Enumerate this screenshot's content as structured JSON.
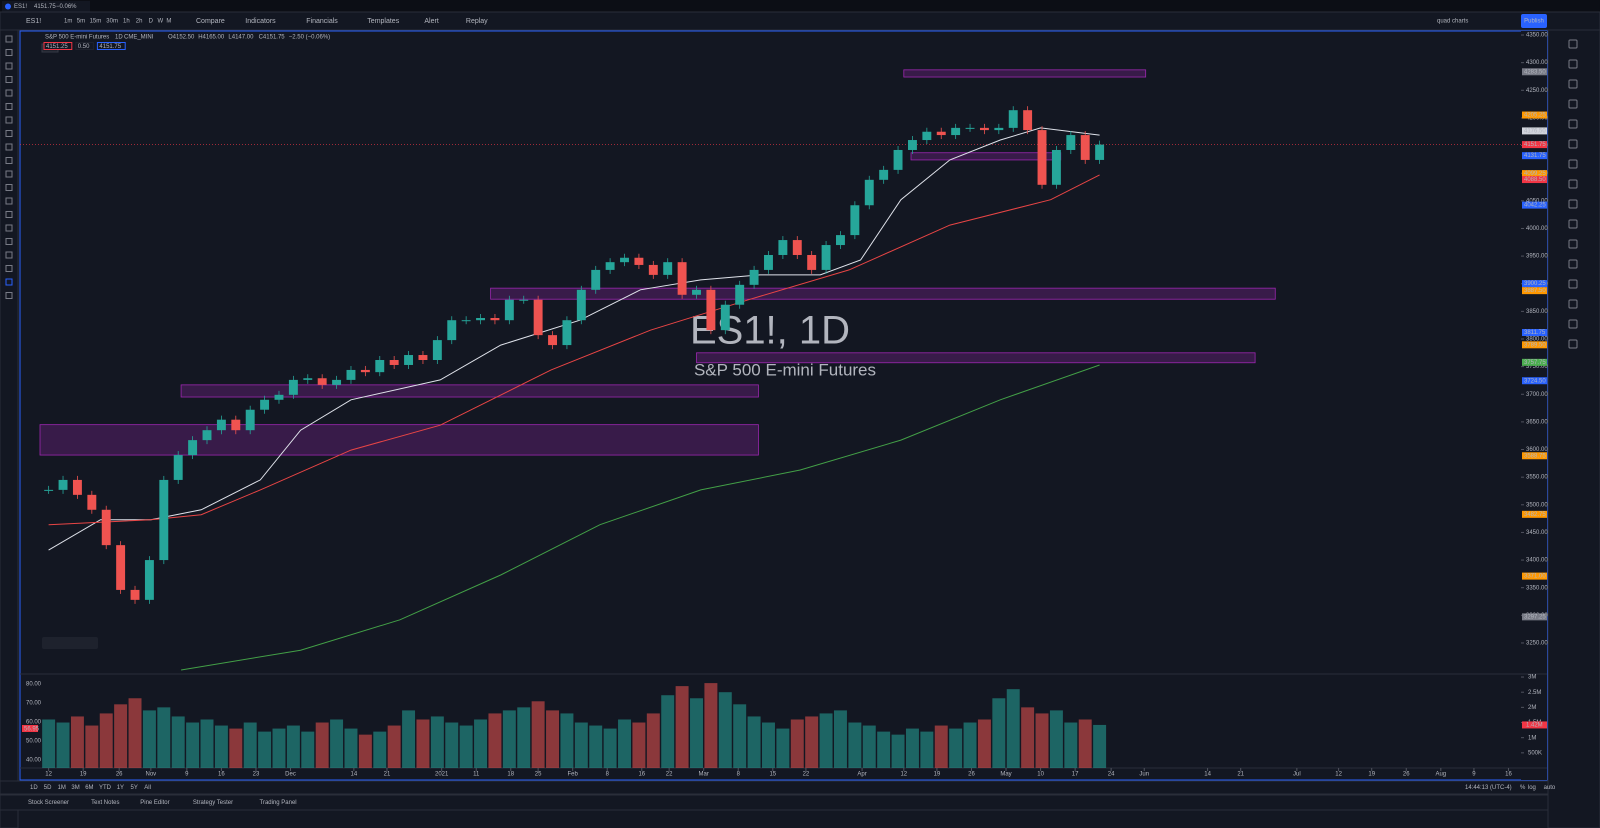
{
  "tab": {
    "title": "ES1!",
    "price": "4151.75",
    "change": "−0.06%"
  },
  "toolbar": {
    "symbol": "ES1!",
    "intervals": [
      "1m",
      "5m",
      "15m",
      "30m",
      "1h",
      "2h",
      "D",
      "W",
      "M"
    ],
    "buttons": [
      "Compare",
      "Indicators",
      "Financials",
      "Templates",
      "Alert",
      "Replay"
    ],
    "layout": "quad charts",
    "publish": "Publish"
  },
  "legend": {
    "name": "S&P 500 E-mini Futures",
    "interval": "1D",
    "exchange": "CME_MINI",
    "ohlc": [
      "O4152.50",
      "H4165.00",
      "L4147.00",
      "C4151.75",
      "−2.50 (−0.06%)"
    ],
    "boxes": [
      "4151.25",
      "0.50",
      "4151.75"
    ]
  },
  "watermark": {
    "symbol": "ES1!, 1D",
    "name": "S&P 500 E-mini Futures"
  },
  "chart_data": {
    "type": "candlestick",
    "up_color": "#26a69a",
    "down_color": "#ef5350",
    "close": [
      3527,
      3545,
      3518,
      3491,
      3427,
      3346,
      3328,
      3400,
      3545,
      3590,
      3617,
      3635,
      3654,
      3635,
      3672,
      3690,
      3699,
      3726,
      3729,
      3717,
      3726,
      3744,
      3740,
      3762,
      3753,
      3771,
      3762,
      3798,
      3834,
      3834,
      3838,
      3834,
      3871,
      3871,
      3807,
      3789,
      3834,
      3889,
      3925,
      3939,
      3947,
      3934,
      3916,
      3939,
      3880,
      3889,
      3816,
      3862,
      3898,
      3925,
      3952,
      3979,
      3952,
      3925,
      3970,
      3988,
      4042,
      4088,
      4106,
      4142,
      4160,
      4175,
      4169,
      4182,
      4182,
      4178,
      4182,
      4214,
      4178,
      4079,
      4142,
      4169,
      4124,
      4151.75
    ],
    "xlim": [
      -0.6,
      102.2
    ],
    "xticks": [
      {
        "value": 0,
        "label": "12"
      },
      {
        "value": 2.4,
        "label": "19"
      },
      {
        "value": 4.9,
        "label": "26"
      },
      {
        "value": 7.1,
        "label": "Nov"
      },
      {
        "value": 9.6,
        "label": "9"
      },
      {
        "value": 12,
        "label": "16"
      },
      {
        "value": 14.4,
        "label": "23"
      },
      {
        "value": 16.8,
        "label": "Dec"
      },
      {
        "value": 21.2,
        "label": "14"
      },
      {
        "value": 23.5,
        "label": "21"
      },
      {
        "value": 27.3,
        "label": "2021"
      },
      {
        "value": 29.7,
        "label": "11"
      },
      {
        "value": 32.1,
        "label": "18"
      },
      {
        "value": 34,
        "label": "25"
      },
      {
        "value": 36.4,
        "label": "Feb"
      },
      {
        "value": 38.8,
        "label": "8"
      },
      {
        "value": 41.2,
        "label": "16"
      },
      {
        "value": 43.1,
        "label": "22"
      },
      {
        "value": 45.5,
        "label": "Mar"
      },
      {
        "value": 47.9,
        "label": "8"
      },
      {
        "value": 50.3,
        "label": "15"
      },
      {
        "value": 52.6,
        "label": "22"
      },
      {
        "value": 56.5,
        "label": "Apr"
      },
      {
        "value": 59.4,
        "label": "12"
      },
      {
        "value": 61.7,
        "label": "19"
      },
      {
        "value": 64.1,
        "label": "26"
      },
      {
        "value": 66.5,
        "label": "May"
      },
      {
        "value": 68.9,
        "label": "10"
      },
      {
        "value": 71.3,
        "label": "17"
      },
      {
        "value": 73.8,
        "label": "24"
      },
      {
        "value": 76.1,
        "label": "Jun"
      },
      {
        "value": 80.5,
        "label": "14"
      },
      {
        "value": 82.8,
        "label": "21"
      },
      {
        "value": 86.7,
        "label": "Jul"
      },
      {
        "value": 89.6,
        "label": "12"
      },
      {
        "value": 91.9,
        "label": "19"
      },
      {
        "value": 94.3,
        "label": "26"
      },
      {
        "value": 96.7,
        "label": "Aug"
      },
      {
        "value": 99,
        "label": "9"
      },
      {
        "value": 101.4,
        "label": "16"
      }
    ],
    "ylim": [
      3200,
      4360
    ],
    "yticks": [
      {
        "value": 4350,
        "label": "4350.00"
      },
      {
        "value": 4300,
        "label": "4300.00"
      },
      {
        "value": 4250,
        "label": "4250.00"
      },
      {
        "value": 4200,
        "label": "4200.00"
      },
      {
        "value": 4150,
        "label": "4150.00"
      },
      {
        "value": 4100,
        "label": "4100.00"
      },
      {
        "value": 4050,
        "label": "4050.00"
      },
      {
        "value": 4000,
        "label": "4000.00"
      },
      {
        "value": 3950,
        "label": "3950.00"
      },
      {
        "value": 3900,
        "label": "3900.00"
      },
      {
        "value": 3850,
        "label": "3850.00"
      },
      {
        "value": 3800,
        "label": "3800.00"
      },
      {
        "value": 3750,
        "label": "3750.00"
      },
      {
        "value": 3700,
        "label": "3700.00"
      },
      {
        "value": 3650,
        "label": "3650.00"
      },
      {
        "value": 3600,
        "label": "3600.00"
      },
      {
        "value": 3550,
        "label": "3550.00"
      },
      {
        "value": 3500,
        "label": "3500.00"
      },
      {
        "value": 3450,
        "label": "3450.00"
      },
      {
        "value": 3400,
        "label": "3400.00"
      },
      {
        "value": 3350,
        "label": "3350.00"
      },
      {
        "value": 3300,
        "label": "3300.00"
      },
      {
        "value": 3250,
        "label": "3250.00"
      }
    ],
    "price_labels": [
      {
        "value": 4283.5,
        "label": "4283.50",
        "color": "#787b86"
      },
      {
        "value": 4205.25,
        "label": "4205.25",
        "color": "#ff9800"
      },
      {
        "value": 4176.5,
        "label": "4176.50",
        "color": "#d1d4dc"
      },
      {
        "value": 4151.75,
        "label": "4151.75",
        "color": "#f23645"
      },
      {
        "value": 4131.75,
        "label": "4131.75",
        "color": "#2962ff"
      },
      {
        "value": 4099.25,
        "label": "4099.25",
        "color": "#ff9800"
      },
      {
        "value": 4088.5,
        "label": "4088.50",
        "color": "#f23645"
      },
      {
        "value": 4042.25,
        "label": "4042.25",
        "color": "#2962ff"
      },
      {
        "value": 3900.25,
        "label": "3900.25",
        "color": "#2962ff"
      },
      {
        "value": 3887.5,
        "label": "3887.50",
        "color": "#ff9800"
      },
      {
        "value": 3811.75,
        "label": "3811.75",
        "color": "#2962ff"
      },
      {
        "value": 3789.5,
        "label": "3789.50",
        "color": "#ff9800"
      },
      {
        "value": 3757.75,
        "label": "3757.75",
        "color": "#4caf50"
      },
      {
        "value": 3724.5,
        "label": "3724.50",
        "color": "#2962ff"
      },
      {
        "value": 3588.75,
        "label": "3588.75",
        "color": "#ff9800"
      },
      {
        "value": 3482.75,
        "label": "3482.75",
        "color": "#ff9800"
      },
      {
        "value": 3371,
        "label": "3371.00",
        "color": "#ff9800"
      },
      {
        "value": 3297.25,
        "label": "3297.25",
        "color": "#787b86"
      }
    ],
    "moving_averages": [
      {
        "color": "#e0e3eb",
        "x": [
          0,
          3.6,
          7.1,
          10.6,
          14.7,
          17.5,
          21,
          27.2,
          31.4,
          36.9,
          41.1,
          45.3,
          49.4,
          53.6,
          56.4,
          59.2,
          62.6,
          66.1,
          68.9,
          73
        ],
        "values": [
          3418,
          3473,
          3473,
          3491,
          3545,
          3635,
          3690,
          3726,
          3789,
          3834,
          3889,
          3907,
          3916,
          3916,
          3943,
          4052,
          4124,
          4160,
          4182,
          4169
        ]
      },
      {
        "color": "#e84545",
        "x": [
          0,
          7.1,
          10.6,
          14.7,
          21,
          27.2,
          34.9,
          41.8,
          48.6,
          55.6,
          62.6,
          69.6,
          73
        ],
        "values": [
          3464,
          3473,
          3482,
          3527,
          3599,
          3644,
          3744,
          3816,
          3871,
          3925,
          4006,
          4052,
          4097
        ]
      },
      {
        "color": "#43a047",
        "x": [
          9.2,
          17.5,
          24.4,
          31.4,
          38.3,
          45.3,
          52.2,
          59.2,
          66.1,
          73
        ],
        "values": [
          3201,
          3237,
          3292,
          3373,
          3464,
          3527,
          3563,
          3617,
          3690,
          3753
        ]
      }
    ],
    "zones": [
      {
        "x": [
          59.4,
          76.2
        ],
        "y": [
          4274,
          4287
        ]
      },
      {
        "x": [
          9.2,
          49.3
        ],
        "y": [
          3695,
          3717
        ]
      },
      {
        "x": [
          -0.6,
          49.3
        ],
        "y": [
          3590,
          3645
        ]
      },
      {
        "x": [
          30.7,
          85.2
        ],
        "y": [
          3872,
          3892
        ]
      },
      {
        "x": [
          45,
          83.8
        ],
        "y": [
          3757,
          3775
        ]
      },
      {
        "x": [
          59.9,
          70.3
        ],
        "y": [
          4124,
          4137
        ]
      }
    ],
    "volume": {
      "values": [
        1.6,
        1.5,
        1.7,
        1.4,
        1.8,
        2.1,
        2.3,
        1.9,
        2.0,
        1.7,
        1.5,
        1.6,
        1.4,
        1.3,
        1.5,
        1.2,
        1.3,
        1.4,
        1.2,
        1.5,
        1.6,
        1.3,
        1.1,
        1.2,
        1.4,
        1.9,
        1.6,
        1.7,
        1.5,
        1.4,
        1.6,
        1.8,
        1.9,
        2.0,
        2.2,
        1.9,
        1.8,
        1.5,
        1.4,
        1.3,
        1.6,
        1.5,
        1.8,
        2.4,
        2.7,
        2.3,
        2.8,
        2.5,
        2.1,
        1.7,
        1.5,
        1.3,
        1.6,
        1.7,
        1.8,
        1.9,
        1.5,
        1.4,
        1.2,
        1.1,
        1.3,
        1.2,
        1.4,
        1.3,
        1.5,
        1.6,
        2.3,
        2.6,
        2.0,
        1.8,
        1.9,
        1.5,
        1.6,
        1.42
      ],
      "ylim": [
        0,
        3.1
      ],
      "yticks": [
        {
          "value": 3,
          "label": "3M"
        },
        {
          "value": 2.5,
          "label": "2.5M"
        },
        {
          "value": 2,
          "label": "2M"
        },
        {
          "value": 1.5,
          "label": "1.5M"
        },
        {
          "value": 1,
          "label": "1M"
        },
        {
          "value": 0.5,
          "label": "500K"
        }
      ],
      "last_label": {
        "value": 1.42,
        "label": "1.42M"
      }
    },
    "indicator_ticks": [
      "80.00",
      "70.00",
      "60.00",
      "50.00",
      "40.00"
    ],
    "indicator_last": "56.95"
  },
  "bottom": {
    "ranges": [
      "1D",
      "5D",
      "1M",
      "3M",
      "6M",
      "YTD",
      "1Y",
      "5Y",
      "All"
    ],
    "clock": "14:44:13 (UTC-4)",
    "scale": [
      "%",
      "log",
      "auto"
    ],
    "tabs": [
      "Stock Screener",
      "Text Notes",
      "Pine Editor",
      "Strategy Tester",
      "Trading Panel"
    ]
  }
}
